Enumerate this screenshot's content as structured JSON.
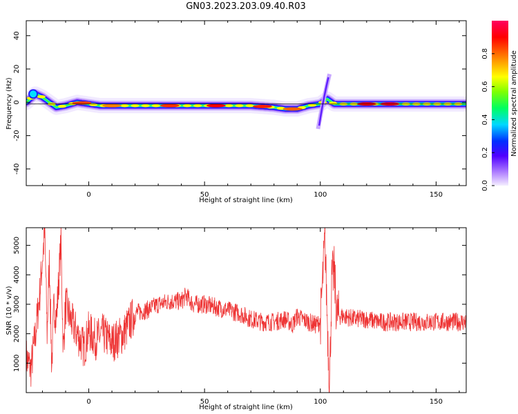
{
  "title": "GN03.2023.203.09.40.R03",
  "colors": {
    "snr_line": "#ee3333",
    "spectrogram_background": "#ffffff",
    "colorbar": [
      "#e8e0ff",
      "#b080ff",
      "#5000ff",
      "#0000ff",
      "#00d8ff",
      "#00ff60",
      "#80ff00",
      "#ffff00",
      "#ff8000",
      "#ff0000",
      "#ff0050"
    ]
  },
  "chart_data": [
    {
      "type": "heatmap",
      "xlabel": "Height of straight line (km)",
      "ylabel": "Frequency (Hz)",
      "xlim": [
        -27,
        163
      ],
      "ylim": [
        -50,
        49
      ],
      "xticks": [
        0,
        50,
        100,
        150
      ],
      "yticks": [
        -40,
        -20,
        0,
        20,
        40
      ],
      "colorbar": {
        "label": "Normalized spectral amplitude",
        "ticks": [
          0.0,
          0.2,
          0.4,
          0.6,
          0.8
        ],
        "range": [
          0,
          1
        ]
      },
      "ridge": {
        "x": [
          -27,
          -23,
          -20,
          -17,
          -14,
          -10,
          -5,
          0,
          5,
          10,
          15,
          20,
          30,
          50,
          70,
          80,
          85,
          90,
          95,
          100,
          103,
          106,
          110,
          130,
          163
        ],
        "y": [
          0,
          5,
          3,
          0,
          -3,
          -2,
          0,
          -1,
          -2,
          -2,
          -2,
          -2,
          -2,
          -2,
          -2,
          -3,
          -4,
          -4,
          -2,
          -1,
          2,
          -1,
          -1,
          -1,
          -1
        ]
      }
    },
    {
      "type": "line",
      "xlabel": "Height of straight line (km)",
      "ylabel": "SNR (10 * v/v)",
      "xlim": [
        -27,
        163
      ],
      "ylim": [
        0,
        5600
      ],
      "xticks": [
        0,
        50,
        100,
        150
      ],
      "yticks": [
        1000,
        2000,
        3000,
        4000,
        5000
      ],
      "series": [
        {
          "x": [
            -27,
            -25,
            -23,
            -21,
            -19,
            -18,
            -17,
            -16,
            -15,
            -14,
            -12,
            -11,
            -10,
            -8,
            -5,
            -2,
            0,
            3,
            6,
            10,
            15,
            20,
            25,
            30,
            35,
            40,
            42,
            45,
            50,
            55,
            60,
            65,
            70,
            75,
            80,
            85,
            88,
            90,
            92,
            95,
            98,
            100,
            102,
            103,
            104,
            105,
            106,
            107,
            108,
            110,
            115,
            120,
            125,
            130,
            135,
            140,
            145,
            150,
            155,
            160,
            163
          ],
          "y": [
            1200,
            800,
            2000,
            3500,
            5500,
            2000,
            4500,
            900,
            3000,
            2500,
            5100,
            1400,
            3000,
            2500,
            2000,
            1500,
            2100,
            1800,
            2000,
            1700,
            2000,
            2700,
            2800,
            3000,
            3100,
            3100,
            3300,
            3000,
            3000,
            2900,
            2800,
            2700,
            2500,
            2400,
            2400,
            2500,
            2300,
            2600,
            2500,
            2400,
            2300,
            2400,
            5200,
            2500,
            300,
            3900,
            4100,
            2700,
            2600,
            2600,
            2500,
            2500,
            2400,
            2400,
            2400,
            2400,
            2400,
            2400,
            2400,
            2400,
            2400
          ]
        }
      ]
    }
  ]
}
